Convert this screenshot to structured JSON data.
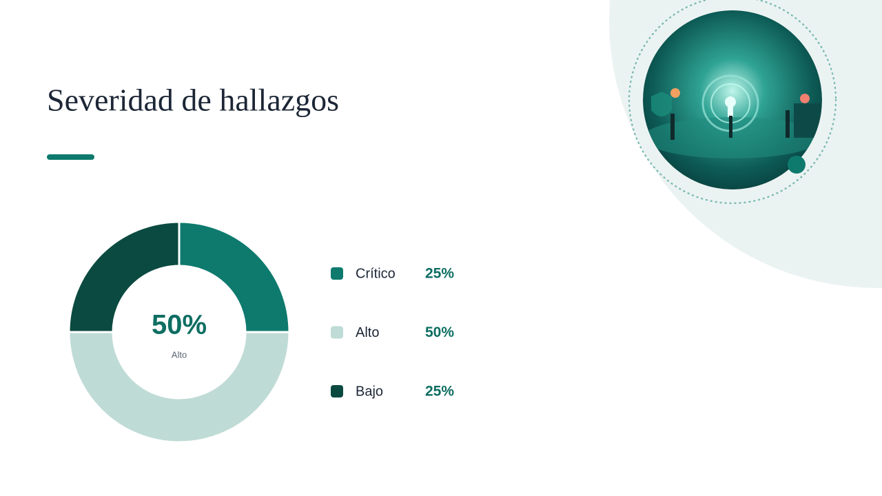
{
  "chart_data": {
    "type": "pie",
    "title": "Severidad de hallazgos",
    "categories": [
      "Crítico",
      "Alto",
      "Bajo"
    ],
    "values": [
      25,
      50,
      25
    ],
    "value_labels": [
      "25%",
      "50%",
      "25%"
    ],
    "colors": [
      "#0e7a6e",
      "#bfdbd6",
      "#0b4a40"
    ],
    "donut": true
  }
}
